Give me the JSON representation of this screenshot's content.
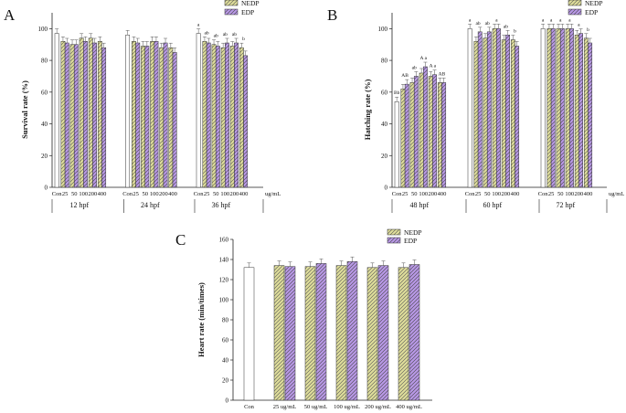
{
  "colors": {
    "con": "#ffffff",
    "nedp": "#dedd9a",
    "edp": "#b898e6",
    "edge": "#333333"
  },
  "chart_data": [
    {
      "id": "A",
      "type": "bar",
      "panel_label": "A",
      "ylabel": "Survival rate (%)",
      "ylim": [
        0,
        110
      ],
      "yticks": [
        "0",
        "20",
        "40",
        "60",
        "80",
        "100"
      ],
      "unit_label": "ug/mL",
      "dose_labels": [
        "Con",
        "25",
        "50",
        "100",
        "200",
        "400"
      ],
      "legend": [
        "NEDP",
        "EDP"
      ],
      "groups": [
        {
          "label": "12 hpf",
          "con": 97,
          "nedp": [
            92,
            90,
            94,
            94,
            92
          ],
          "edp": [
            91,
            90,
            92,
            91,
            88
          ],
          "sig": []
        },
        {
          "label": "24 hpf",
          "con": 96,
          "nedp": [
            92,
            89,
            92,
            88,
            88
          ],
          "edp": [
            91,
            89,
            92,
            91,
            85
          ],
          "sig": []
        },
        {
          "label": "36 hpf",
          "con": 97,
          "nedp": [
            92,
            90,
            88,
            89,
            88
          ],
          "edp": [
            91,
            89,
            91,
            91,
            83
          ],
          "sig": [
            "a",
            "ab",
            "ab",
            "ab",
            "ab",
            "b"
          ]
        }
      ]
    },
    {
      "id": "B",
      "type": "bar",
      "panel_label": "B",
      "ylabel": "Hatching rate (%)",
      "ylim": [
        0,
        110
      ],
      "yticks": [
        "0",
        "20",
        "40",
        "60",
        "80",
        "100"
      ],
      "unit_label": "ug/mL",
      "dose_labels": [
        "Con",
        "25",
        "50",
        "100",
        "200",
        "400"
      ],
      "legend": [
        "NEDP",
        "EDP"
      ],
      "groups": [
        {
          "label": "48 hpf",
          "con": 54,
          "nedp": [
            62,
            66,
            72,
            70,
            66
          ],
          "edp": [
            65,
            70,
            76,
            71,
            66
          ],
          "sig": [
            "Bb",
            "AB",
            "ab",
            "A a",
            "A a",
            "AB"
          ]
        },
        {
          "label": "60 hpf",
          "con": 100,
          "nedp": [
            92,
            94,
            100,
            93,
            93
          ],
          "edp": [
            98,
            98,
            100,
            96,
            89
          ],
          "sig": [
            "a",
            "ab",
            "ab",
            "a",
            "ab",
            "b"
          ]
        },
        {
          "label": "72 hpf",
          "con": 100,
          "nedp": [
            100,
            100,
            100,
            96,
            94
          ],
          "edp": [
            100,
            100,
            100,
            97,
            91
          ],
          "sig": [
            "a",
            "a",
            "a",
            "a",
            "a",
            "b"
          ]
        }
      ]
    },
    {
      "id": "C",
      "type": "bar",
      "panel_label": "C",
      "ylabel": "Heart rate (min/times)",
      "ylim": [
        0,
        160
      ],
      "yticks": [
        "0",
        "20",
        "40",
        "60",
        "80",
        "100",
        "120",
        "140",
        "160"
      ],
      "legend": [
        "NEDP",
        "EDP"
      ],
      "categories": [
        "Con",
        "25 ug/mL",
        "50 ug/mL",
        "100 ug/mL",
        "200 ug/mL",
        "400 ug/mL"
      ],
      "con": 132,
      "nedp": [
        134,
        133,
        134,
        132,
        132
      ],
      "edp": [
        133,
        136,
        138,
        134,
        135
      ]
    }
  ]
}
